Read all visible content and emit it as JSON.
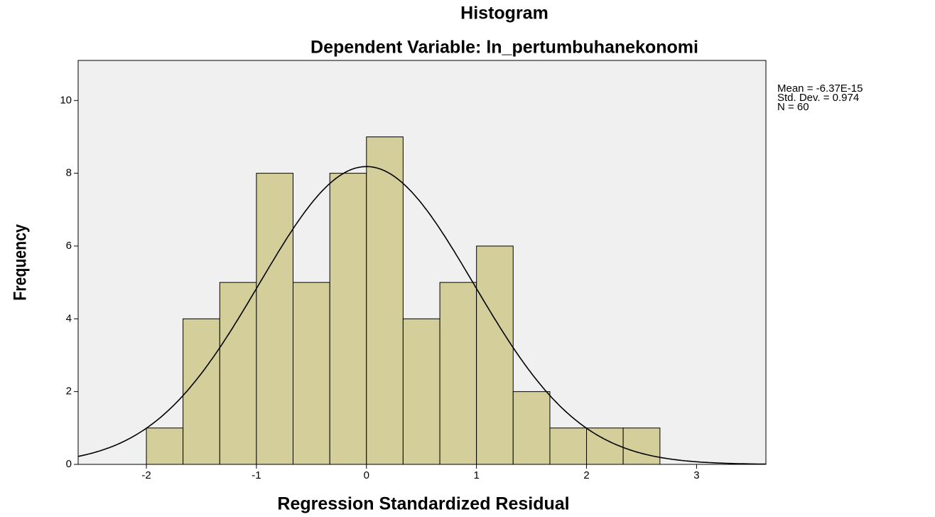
{
  "chart_data": {
    "type": "histogram",
    "title": "Histogram",
    "subtitle": "Dependent Variable: ln_pertumbuhanekonomi",
    "x_label": "Regression Standardized Residual",
    "y_label": "Frequency",
    "annotations": [
      "Mean = -6.37E-15",
      "Std. Dev. = 0.974",
      "N = 60"
    ],
    "bins": [
      -2,
      -1.667,
      -1.333,
      -1,
      -0.667,
      -0.333,
      0,
      0.333,
      0.667,
      1,
      1.333,
      1.667,
      2,
      2.333,
      2.667
    ],
    "values": [
      1,
      4,
      5,
      8,
      5,
      8,
      9,
      4,
      5,
      6,
      2,
      1,
      1,
      1
    ],
    "color": "#d4cf9a",
    "normal_curve": {
      "mean": -6.37e-15,
      "std": 0.974,
      "n": 60
    },
    "xlim": [
      -2.62,
      3.63
    ],
    "xticks": [
      -2,
      -1,
      0,
      1,
      2,
      3
    ],
    "ylim": [
      0,
      11.1
    ],
    "yticks": [
      0,
      2,
      4,
      6,
      8,
      10
    ],
    "grid": false
  }
}
